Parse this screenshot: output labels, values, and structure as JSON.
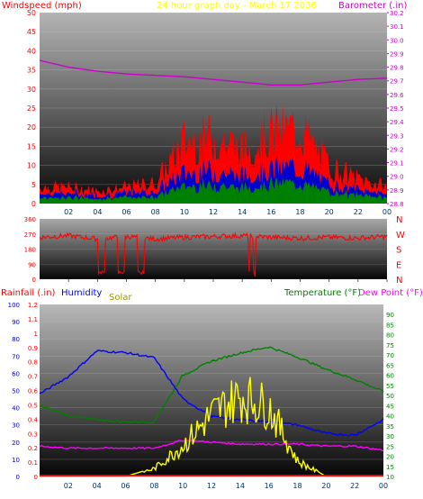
{
  "colors": {
    "wind": "#ff0000",
    "barometer": "#cc00cc",
    "title": "#ffff00",
    "direction": "#ff0000",
    "rain": "#ff0000",
    "humidity": "#0000ff",
    "solar": "#ffff00",
    "solar_label": "#999900",
    "temperature": "#008000",
    "dewpoint": "#ff00ff",
    "axis_text": "#333333"
  },
  "header": {
    "wind_label": "Windspeed (mph)",
    "title": "24 hour graph day - March 17 2036",
    "barometer_label": "Barometer (.in)"
  },
  "x_ticks": [
    "02",
    "04",
    "06",
    "08",
    "10",
    "12",
    "14",
    "16",
    "18",
    "20",
    "22",
    "00"
  ],
  "compass": [
    "N",
    "W",
    "S",
    "E",
    "N"
  ],
  "bottom_header": {
    "rain_label": "Rainfall (.in)",
    "humidity_label": "Humidity",
    "solar_label": "Solar",
    "temp_label": "Temperature (°F)",
    "dew_label": "Dew Point (°F)"
  },
  "chart_data": [
    {
      "type": "line",
      "title": "24 hour graph day - March 17 2036",
      "x": [
        "00",
        "02",
        "04",
        "06",
        "08",
        "10",
        "12",
        "14",
        "16",
        "18",
        "20",
        "22",
        "00"
      ],
      "left_axis": {
        "label": "Windspeed (mph)",
        "ylim": [
          0,
          50
        ],
        "ticks": [
          0,
          5,
          10,
          15,
          20,
          25,
          30,
          35,
          40,
          45,
          50
        ]
      },
      "right_axis": {
        "label": "Barometer (.in)",
        "ylim": [
          28.8,
          30.2
        ],
        "ticks": [
          28.8,
          28.9,
          29.0,
          29.1,
          29.2,
          29.3,
          29.4,
          29.5,
          29.6,
          29.7,
          29.8,
          29.9,
          30.0,
          30.1,
          30.2
        ]
      },
      "series": [
        {
          "name": "Windspeed (mph)",
          "axis": "left",
          "values": [
            4,
            4,
            3,
            4,
            5,
            15,
            16,
            13,
            17,
            18,
            9,
            6,
            4
          ]
        },
        {
          "name": "Barometer (.in)",
          "axis": "right",
          "values": [
            29.85,
            29.8,
            29.77,
            29.75,
            29.74,
            29.73,
            29.71,
            29.69,
            29.67,
            29.67,
            29.69,
            29.71,
            29.72
          ]
        }
      ]
    },
    {
      "type": "line",
      "title": "",
      "x": [
        "00",
        "02",
        "04",
        "06",
        "08",
        "10",
        "12",
        "14",
        "16",
        "18",
        "20",
        "22",
        "00"
      ],
      "ylim": [
        0,
        360
      ],
      "ticks": [
        0,
        45,
        90,
        135,
        180,
        225,
        270,
        315,
        360
      ],
      "compass": [
        "N",
        "W",
        "S",
        "E",
        "N"
      ],
      "series": [
        {
          "name": "Wind direction",
          "values": [
            250,
            260,
            240,
            255,
            240,
            250,
            255,
            260,
            250,
            245,
            250,
            245,
            255
          ]
        }
      ]
    },
    {
      "type": "line",
      "title": "",
      "x": [
        "00",
        "02",
        "04",
        "06",
        "08",
        "10",
        "12",
        "14",
        "16",
        "18",
        "20",
        "22",
        "00"
      ],
      "axes": {
        "rainfall": {
          "label": "Rainfall (.in)",
          "ylim": [
            0,
            100
          ]
        },
        "rain_scale": {
          "ylim": [
            0,
            1.2
          ]
        },
        "temperature": {
          "label": "Temperature (°F)",
          "ylim": [
            10,
            95
          ]
        }
      },
      "series": [
        {
          "name": "Humidity",
          "axis": "rainfall",
          "values": [
            48,
            58,
            73,
            72,
            69,
            45,
            35,
            33,
            32,
            30,
            25,
            24,
            33
          ]
        },
        {
          "name": "Solar",
          "axis": "rainfall",
          "values": [
            0,
            0,
            0,
            0,
            5,
            20,
            40,
            52,
            45,
            10,
            0,
            0,
            0
          ]
        },
        {
          "name": "Temperature (°F)",
          "axis": "temperature",
          "values": [
            45,
            40,
            38,
            37,
            37,
            60,
            67,
            71,
            74,
            69,
            63,
            58,
            52
          ]
        },
        {
          "name": "Dew Point (°F)",
          "axis": "temperature",
          "values": [
            25,
            24,
            24,
            24,
            24,
            28,
            27,
            26,
            26,
            26,
            25,
            25,
            23
          ]
        }
      ]
    }
  ]
}
